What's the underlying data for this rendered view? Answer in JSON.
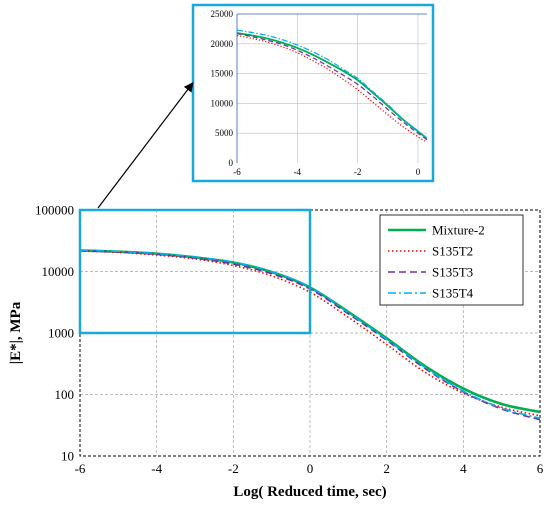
{
  "chart_data": [
    {
      "type": "line",
      "xlabel": "Log( Reduced time, sec)",
      "ylabel": "|E*|, MPa",
      "xlim": [
        -6,
        6
      ],
      "ylim": [
        10,
        100000
      ],
      "yscale": "log",
      "grid": true,
      "legend_position": "top-right",
      "x_ticks": [
        -6,
        -4,
        -2,
        0,
        2,
        4,
        6
      ],
      "x_tick_labels": [
        "-6",
        "-4",
        "-2",
        "0",
        "2",
        "4",
        "6"
      ],
      "y_ticks": [
        10,
        100,
        1000,
        10000,
        100000
      ],
      "y_tick_labels": [
        "10",
        "100",
        "1000",
        "10000",
        "100000"
      ],
      "x": [
        -6,
        -5,
        -4,
        -3,
        -2,
        -1,
        0,
        1,
        2,
        3,
        4,
        5,
        6
      ],
      "series": [
        {
          "name": "Mixture-2",
          "color": "#00b050",
          "dash": "solid",
          "values": [
            22000,
            21000,
            19500,
            17000,
            14000,
            9800,
            5500,
            2200,
            820,
            290,
            125,
            70,
            52
          ]
        },
        {
          "name": "S135T2",
          "color": "#ff0000",
          "dash": "dotted",
          "values": [
            21500,
            20500,
            18500,
            16000,
            12500,
            8500,
            4600,
            1800,
            650,
            230,
            105,
            62,
            45
          ]
        },
        {
          "name": "S135T3",
          "color": "#7030a0",
          "dash": "dashed",
          "values": [
            21800,
            20800,
            19000,
            16500,
            13200,
            9200,
            5200,
            2050,
            760,
            265,
            110,
            58,
            39
          ]
        },
        {
          "name": "S135T4",
          "color": "#00b0f0",
          "dash": "dashdot",
          "values": [
            22200,
            21200,
            19600,
            17200,
            14200,
            10000,
            5600,
            2150,
            790,
            275,
            113,
            60,
            41
          ]
        }
      ],
      "highlight_region": {
        "x_range": [
          -6,
          0
        ],
        "y_range": [
          1000,
          100000
        ],
        "color": "#1aa7d9"
      }
    },
    {
      "type": "line",
      "xlim": [
        -6,
        0.3
      ],
      "ylim": [
        0,
        25000
      ],
      "yscale": "linear",
      "grid": true,
      "x_ticks": [
        -6,
        -4,
        -2,
        0
      ],
      "x_tick_labels": [
        "-6",
        "-4",
        "-2",
        "0"
      ],
      "y_ticks": [
        0,
        5000,
        10000,
        15000,
        20000,
        25000
      ],
      "y_tick_labels": [
        "0",
        "5000",
        "10000",
        "15000",
        "20000",
        "25000"
      ],
      "x": [
        -6,
        -5.5,
        -5,
        -4.5,
        -4,
        -3.5,
        -3,
        -2.5,
        -2,
        -1.5,
        -1,
        -0.5,
        0,
        0.3
      ],
      "series": [
        {
          "name": "Mixture-2",
          "color": "#00b050",
          "dash": "solid",
          "values": [
            21800,
            21400,
            20900,
            20200,
            19300,
            18200,
            16900,
            15500,
            13900,
            11800,
            9600,
            7300,
            5300,
            4100
          ]
        },
        {
          "name": "S135T2",
          "color": "#ff0000",
          "dash": "dotted",
          "values": [
            21400,
            20900,
            20300,
            19500,
            18500,
            17200,
            15800,
            14100,
            12300,
            10200,
            8100,
            6100,
            4400,
            3500
          ]
        },
        {
          "name": "S135T3",
          "color": "#7030a0",
          "dash": "dashed",
          "values": [
            21700,
            21200,
            20600,
            19900,
            18900,
            17700,
            16300,
            14800,
            13200,
            11200,
            9000,
            6900,
            5000,
            3900
          ]
        },
        {
          "name": "S135T4",
          "color": "#00b0f0",
          "dash": "dashdot",
          "values": [
            22300,
            21900,
            21400,
            20700,
            19800,
            18700,
            17400,
            15800,
            14200,
            12000,
            9800,
            7400,
            5400,
            4200
          ]
        }
      ]
    }
  ]
}
